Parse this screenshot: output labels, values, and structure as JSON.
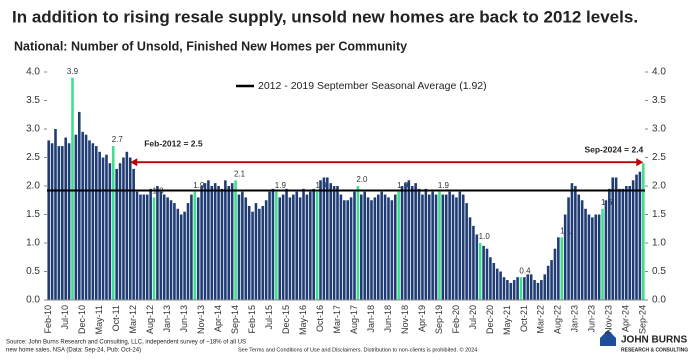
{
  "chart_data": {
    "type": "bar",
    "title": "In addition to rising resale supply, unsold new homes are back to 2012 levels.",
    "subtitle": "National: Number of Unsold, Finished New Homes per Community",
    "categories": [
      "Feb-10",
      null,
      null,
      null,
      null,
      "Jul-10",
      null,
      null,
      null,
      null,
      "Dec-10",
      null,
      null,
      null,
      null,
      "May-11",
      null,
      null,
      null,
      null,
      "Oct-11",
      null,
      null,
      null,
      null,
      "Mar-12",
      null,
      null,
      null,
      null,
      "Aug-12",
      null,
      null,
      null,
      null,
      "Jan-13",
      null,
      null,
      null,
      null,
      "Jun-13",
      null,
      null,
      null,
      null,
      "Nov-13",
      null,
      null,
      null,
      null,
      "Apr-14",
      null,
      null,
      null,
      null,
      "Sep-14",
      null,
      null,
      null,
      null,
      "Feb-15",
      null,
      null,
      null,
      null,
      "Jul-15",
      null,
      null,
      null,
      null,
      "Dec-15",
      null,
      null,
      null,
      null,
      "May-16",
      null,
      null,
      null,
      null,
      "Oct-16",
      null,
      null,
      null,
      null,
      "Mar-17",
      null,
      null,
      null,
      null,
      "Aug-17",
      null,
      null,
      null,
      null,
      "Jan-18",
      null,
      null,
      null,
      null,
      "Jun-18",
      null,
      null,
      null,
      null,
      "Nov-18",
      null,
      null,
      null,
      null,
      "Apr-19",
      null,
      null,
      null,
      null,
      "Sep-19",
      null,
      null,
      null,
      null,
      "Feb-20",
      null,
      null,
      null,
      null,
      "Jul-20",
      null,
      null,
      null,
      null,
      "Dec-20",
      null,
      null,
      null,
      null,
      "May-21",
      null,
      null,
      null,
      null,
      "Oct-21",
      null,
      null,
      null,
      null,
      "Mar-22",
      null,
      null,
      null,
      null,
      "Aug-22",
      null,
      null,
      null,
      null,
      "Jan-23",
      null,
      null,
      null,
      null,
      "Jun-23",
      null,
      null,
      null,
      null,
      "Nov-23",
      null,
      null,
      null,
      null,
      "Apr-24",
      null,
      null,
      null,
      null,
      "Sep-24"
    ],
    "values": [
      2.8,
      2.75,
      3.0,
      2.7,
      2.7,
      2.85,
      2.75,
      3.9,
      2.9,
      3.3,
      2.95,
      2.9,
      2.8,
      2.75,
      2.7,
      2.6,
      2.5,
      2.55,
      2.4,
      2.7,
      2.3,
      2.4,
      2.5,
      2.6,
      2.5,
      2.3,
      1.9,
      1.85,
      1.85,
      1.85,
      1.95,
      1.8,
      2.0,
      1.9,
      1.85,
      1.8,
      1.75,
      1.7,
      1.6,
      1.5,
      1.55,
      1.7,
      1.85,
      1.9,
      1.8,
      2.0,
      2.05,
      2.1,
      2.0,
      2.05,
      2.0,
      1.95,
      2.1,
      2.0,
      2.05,
      2.1,
      1.85,
      1.9,
      1.8,
      1.65,
      1.55,
      1.7,
      1.6,
      1.65,
      1.75,
      1.9,
      1.95,
      1.9,
      1.8,
      1.85,
      1.95,
      1.8,
      1.85,
      1.9,
      1.8,
      1.95,
      1.85,
      1.9,
      1.95,
      1.9,
      2.1,
      2.15,
      2.15,
      2.05,
      2.0,
      2.0,
      1.85,
      1.75,
      1.75,
      1.8,
      1.9,
      2.0,
      1.85,
      1.9,
      1.8,
      1.75,
      1.8,
      1.85,
      1.9,
      1.85,
      1.8,
      1.75,
      1.85,
      1.9,
      2.0,
      2.05,
      2.1,
      2.0,
      2.05,
      1.95,
      1.85,
      1.95,
      1.85,
      1.9,
      1.85,
      1.9,
      1.85,
      1.85,
      1.9,
      1.85,
      1.8,
      1.9,
      1.85,
      1.7,
      1.45,
      1.3,
      1.15,
      1.0,
      0.95,
      0.9,
      0.75,
      0.65,
      0.55,
      0.5,
      0.4,
      0.35,
      0.3,
      0.35,
      0.4,
      0.4,
      0.4,
      0.45,
      0.45,
      0.35,
      0.3,
      0.35,
      0.45,
      0.6,
      0.7,
      0.9,
      1.1,
      1.1,
      1.5,
      1.8,
      2.05,
      2.0,
      1.85,
      1.75,
      1.6,
      1.5,
      1.45,
      1.5,
      1.5,
      1.6,
      1.75,
      1.95,
      2.15,
      2.15,
      1.95,
      1.95,
      2.0,
      2.0,
      2.1,
      2.2,
      2.25,
      2.4
    ],
    "value_labels": [
      null,
      null,
      null,
      null,
      null,
      null,
      null,
      "3.9",
      null,
      null,
      null,
      null,
      null,
      null,
      null,
      null,
      null,
      null,
      null,
      "2.7",
      null,
      null,
      null,
      null,
      null,
      null,
      null,
      null,
      null,
      null,
      null,
      "1.8",
      null,
      null,
      null,
      null,
      null,
      null,
      null,
      null,
      null,
      null,
      null,
      "1.9",
      null,
      null,
      null,
      null,
      null,
      null,
      null,
      null,
      null,
      null,
      null,
      "2.1",
      null,
      null,
      null,
      null,
      null,
      null,
      null,
      null,
      null,
      null,
      null,
      "1.9",
      null,
      null,
      null,
      null,
      null,
      null,
      null,
      null,
      null,
      null,
      null,
      "1.9",
      null,
      null,
      null,
      null,
      null,
      null,
      null,
      null,
      null,
      null,
      null,
      "2.0",
      null,
      null,
      null,
      null,
      null,
      null,
      null,
      null,
      null,
      null,
      null,
      "1.9",
      null,
      null,
      null,
      null,
      null,
      null,
      null,
      null,
      null,
      null,
      null,
      "1.9",
      null,
      null,
      null,
      null,
      null,
      null,
      null,
      null,
      null,
      null,
      null,
      "1.0",
      null,
      null,
      null,
      null,
      null,
      null,
      null,
      null,
      null,
      null,
      null,
      "0.4",
      null,
      null,
      null,
      null,
      null,
      null,
      null,
      null,
      null,
      null,
      null,
      "1.1",
      null,
      null,
      null,
      null,
      null,
      null,
      null,
      null,
      null,
      null,
      null,
      "1.6",
      null,
      null,
      null,
      null,
      null,
      null,
      null,
      null,
      null,
      null,
      null,
      null
    ],
    "colors": [
      "#1f3c74",
      "#1f3c74",
      "#1f3c74",
      "#1f3c74",
      "#1f3c74",
      "#1f3c74",
      "#1f3c74",
      "#3ee08f",
      "#1f3c74",
      "#1f3c74",
      "#1f3c74",
      "#1f3c74",
      "#1f3c74",
      "#1f3c74",
      "#1f3c74",
      "#1f3c74",
      "#1f3c74",
      "#1f3c74",
      "#1f3c74",
      "#3ee08f",
      "#1f3c74",
      "#1f3c74",
      "#1f3c74",
      "#1f3c74",
      "#1f3c74",
      "#1f3c74",
      "#1f3c74",
      "#1f3c74",
      "#1f3c74",
      "#1f3c74",
      "#1f3c74",
      "#3ee08f",
      "#1f3c74",
      "#1f3c74",
      "#1f3c74",
      "#1f3c74",
      "#1f3c74",
      "#1f3c74",
      "#1f3c74",
      "#1f3c74",
      "#1f3c74",
      "#1f3c74",
      "#1f3c74",
      "#3ee08f",
      "#1f3c74",
      "#1f3c74",
      "#1f3c74",
      "#1f3c74",
      "#1f3c74",
      "#1f3c74",
      "#1f3c74",
      "#1f3c74",
      "#1f3c74",
      "#1f3c74",
      "#1f3c74",
      "#3ee08f",
      "#1f3c74",
      "#1f3c74",
      "#1f3c74",
      "#1f3c74",
      "#1f3c74",
      "#1f3c74",
      "#1f3c74",
      "#1f3c74",
      "#1f3c74",
      "#1f3c74",
      "#1f3c74",
      "#3ee08f",
      "#1f3c74",
      "#1f3c74",
      "#1f3c74",
      "#1f3c74",
      "#1f3c74",
      "#1f3c74",
      "#1f3c74",
      "#1f3c74",
      "#1f3c74",
      "#1f3c74",
      "#1f3c74",
      "#3ee08f",
      "#1f3c74",
      "#1f3c74",
      "#1f3c74",
      "#1f3c74",
      "#1f3c74",
      "#1f3c74",
      "#1f3c74",
      "#1f3c74",
      "#1f3c74",
      "#1f3c74",
      "#1f3c74",
      "#3ee08f",
      "#1f3c74",
      "#1f3c74",
      "#1f3c74",
      "#1f3c74",
      "#1f3c74",
      "#1f3c74",
      "#1f3c74",
      "#1f3c74",
      "#1f3c74",
      "#1f3c74",
      "#1f3c74",
      "#3ee08f",
      "#1f3c74",
      "#1f3c74",
      "#1f3c74",
      "#1f3c74",
      "#1f3c74",
      "#1f3c74",
      "#1f3c74",
      "#1f3c74",
      "#1f3c74",
      "#1f3c74",
      "#1f3c74",
      "#3ee08f",
      "#1f3c74",
      "#1f3c74",
      "#1f3c74",
      "#1f3c74",
      "#1f3c74",
      "#1f3c74",
      "#1f3c74",
      "#1f3c74",
      "#1f3c74",
      "#1f3c74",
      "#1f3c74",
      "#3ee08f",
      "#1f3c74",
      "#1f3c74",
      "#1f3c74",
      "#1f3c74",
      "#1f3c74",
      "#1f3c74",
      "#1f3c74",
      "#1f3c74",
      "#1f3c74",
      "#1f3c74",
      "#1f3c74",
      "#3ee08f",
      "#1f3c74",
      "#1f3c74",
      "#1f3c74",
      "#1f3c74",
      "#1f3c74",
      "#1f3c74",
      "#1f3c74",
      "#1f3c74",
      "#1f3c74",
      "#1f3c74",
      "#1f3c74",
      "#3ee08f",
      "#1f3c74",
      "#1f3c74",
      "#1f3c74",
      "#1f3c74",
      "#1f3c74",
      "#1f3c74",
      "#1f3c74",
      "#1f3c74",
      "#1f3c74",
      "#1f3c74",
      "#1f3c74",
      "#3ee08f",
      "#1f3c74",
      "#1f3c74",
      "#1f3c74",
      "#1f3c74",
      "#1f3c74",
      "#1f3c74",
      "#1f3c74",
      "#1f3c74",
      "#1f3c74",
      "#1f3c74",
      "#1f3c74",
      "#3ee08f"
    ],
    "reference_line": {
      "name": "2012 - 2019 September Seasonal Average (1.92)",
      "value": 1.92,
      "color": "#000000"
    },
    "annotations": [
      {
        "text": "Feb-2012 = 2.5",
        "color": "#c00000"
      },
      {
        "text": "Sep-2024 = 2.4",
        "color": "#c00000"
      }
    ],
    "ylim": [
      0,
      4
    ],
    "yticks": [
      {
        "value": 0,
        "label": "0.0"
      },
      {
        "value": 0.5,
        "label": "0.5"
      },
      {
        "value": 1,
        "label": "1.0"
      },
      {
        "value": 1.5,
        "label": "1.5"
      },
      {
        "value": 2,
        "label": "2.0"
      },
      {
        "value": 2.5,
        "label": "2.5"
      },
      {
        "value": 3,
        "label": "3.0"
      },
      {
        "value": 3.5,
        "label": "3.5"
      },
      {
        "value": 4,
        "label": "4.0"
      }
    ],
    "y2lim": [
      0,
      4
    ],
    "y2ticks": [
      {
        "value": 0,
        "label": "0.0"
      },
      {
        "value": 0.5,
        "label": "0.5"
      },
      {
        "value": 1,
        "label": "1.0"
      },
      {
        "value": 1.5,
        "label": "1.5"
      },
      {
        "value": 2,
        "label": "2.0"
      },
      {
        "value": 2.5,
        "label": "2.5"
      },
      {
        "value": 3,
        "label": "3.0"
      },
      {
        "value": 3.5,
        "label": "3.5"
      },
      {
        "value": 4,
        "label": "4.0"
      }
    ],
    "grid": false
  },
  "footer": {
    "source": [
      "Source: John Burns Research and Consulting, LLC, independent survey of ~18% of all US",
      "new home sales, NSA (Data: Sep-24, Pub: Oct-24)"
    ],
    "disclaimer": "See Terms and Conditions of Use and Disclaimers. Distribution to non-clients is prohibited. © 2024",
    "logo": [
      "JOHN BURNS",
      "RESEARCH & CONSULTING"
    ]
  }
}
